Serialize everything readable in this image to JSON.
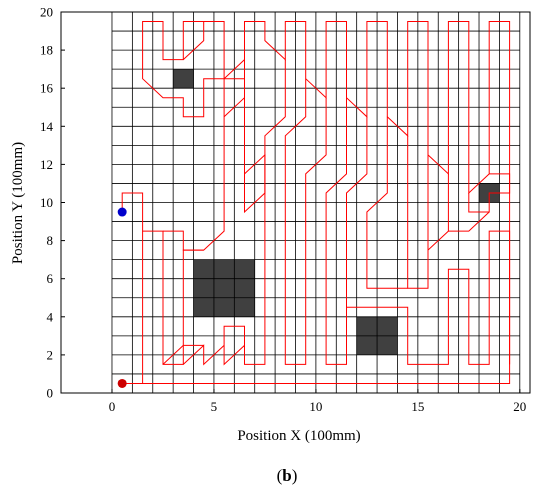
{
  "chart_data": {
    "type": "scatter",
    "xlabel": "Position X (100mm)",
    "ylabel": "Position Y (100mm)",
    "xlim": [
      -2.5,
      20.5
    ],
    "ylim": [
      0,
      20
    ],
    "xticks": [
      0,
      5,
      10,
      15,
      20
    ],
    "yticks": [
      0,
      2,
      4,
      6,
      8,
      10,
      12,
      14,
      16,
      18,
      20
    ],
    "grid": {
      "step": 1,
      "x_from": 0,
      "x_to": 20,
      "y_from": 0,
      "y_to": 20
    },
    "obstacles": [
      {
        "x0": 3,
        "x1": 4,
        "y0": 16,
        "y1": 17
      },
      {
        "x0": 4,
        "x1": 7,
        "y0": 4,
        "y1": 7
      },
      {
        "x0": 12,
        "x1": 14,
        "y0": 2,
        "y1": 4
      },
      {
        "x0": 18,
        "x1": 19,
        "y0": 10,
        "y1": 11
      }
    ],
    "start_point": {
      "x": 0.5,
      "y": 0.5
    },
    "end_point": {
      "x": 0.5,
      "y": 9.5
    },
    "path": [
      [
        0.5,
        0.5
      ],
      [
        19.5,
        0.5
      ],
      [
        19.5,
        19.5
      ],
      [
        18.5,
        19.5
      ],
      [
        18.5,
        11.5
      ],
      [
        17.5,
        10.5
      ],
      [
        17.5,
        19.5
      ],
      [
        16.5,
        19.5
      ],
      [
        16.5,
        11.5
      ],
      [
        15.5,
        12.5
      ],
      [
        15.5,
        19.5
      ],
      [
        14.5,
        19.5
      ],
      [
        14.5,
        13.5
      ],
      [
        13.5,
        14.5
      ],
      [
        13.5,
        19.5
      ],
      [
        12.5,
        19.5
      ],
      [
        12.5,
        14.5
      ],
      [
        11.5,
        15.5
      ],
      [
        11.5,
        19.5
      ],
      [
        10.5,
        19.5
      ],
      [
        10.5,
        15.5
      ],
      [
        9.5,
        16.5
      ],
      [
        9.5,
        19.5
      ],
      [
        8.5,
        19.5
      ],
      [
        8.5,
        17.5
      ],
      [
        7.5,
        18.5
      ],
      [
        7.5,
        19.5
      ],
      [
        6.5,
        19.5
      ],
      [
        6.5,
        17.5
      ],
      [
        5.5,
        16.5
      ],
      [
        5.5,
        19.5
      ],
      [
        4.5,
        19.5
      ],
      [
        4.5,
        18.5
      ],
      [
        3.5,
        17.5
      ],
      [
        4.5,
        18.5
      ],
      [
        4.5,
        19.5
      ],
      [
        3.5,
        19.5
      ],
      [
        3.5,
        17.5
      ],
      [
        2.5,
        17.5
      ],
      [
        2.5,
        19.5
      ],
      [
        1.5,
        19.5
      ],
      [
        1.5,
        16.5
      ],
      [
        2.5,
        15.5
      ],
      [
        3.5,
        15.5
      ],
      [
        3.5,
        14.5
      ],
      [
        4.5,
        14.5
      ],
      [
        4.5,
        16.5
      ],
      [
        5.5,
        16.5
      ],
      [
        5.5,
        8.5
      ],
      [
        4.5,
        7.5
      ],
      [
        3.5,
        7.5
      ],
      [
        3.5,
        1.5
      ],
      [
        2.5,
        1.5
      ],
      [
        2.5,
        8.5
      ],
      [
        1.5,
        8.5
      ],
      [
        1.5,
        10.5
      ],
      [
        0.5,
        10.5
      ],
      [
        0.5,
        9.5
      ]
    ],
    "path_segments": [
      [
        [
          18.5,
          11.5
        ],
        [
          19.5,
          11.5
        ],
        [
          19.5,
          10.5
        ],
        [
          18.5,
          10.5
        ],
        [
          18.5,
          9.5
        ],
        [
          17.5,
          9.5
        ],
        [
          17.5,
          10.5
        ]
      ],
      [
        [
          16.5,
          11.5
        ],
        [
          16.5,
          8.5
        ],
        [
          17.5,
          8.5
        ],
        [
          18.5,
          9.5
        ]
      ],
      [
        [
          15.5,
          12.5
        ],
        [
          15.5,
          7.5
        ],
        [
          16.5,
          8.5
        ]
      ],
      [
        [
          14.5,
          13.5
        ],
        [
          14.5,
          5.5
        ],
        [
          15.5,
          5.5
        ],
        [
          15.5,
          7.5
        ]
      ],
      [
        [
          13.5,
          14.5
        ],
        [
          13.5,
          10.5
        ],
        [
          12.5,
          9.5
        ],
        [
          12.5,
          5.5
        ],
        [
          14.5,
          5.5
        ]
      ],
      [
        [
          12.5,
          14.5
        ],
        [
          12.5,
          11.5
        ],
        [
          11.5,
          10.5
        ],
        [
          11.5,
          5.5
        ],
        [
          11.5,
          4.5
        ],
        [
          14.5,
          4.5
        ],
        [
          14.5,
          1.5
        ],
        [
          16.5,
          1.5
        ],
        [
          16.5,
          6.5
        ],
        [
          17.5,
          6.5
        ],
        [
          17.5,
          1.5
        ],
        [
          18.5,
          1.5
        ],
        [
          18.5,
          8.5
        ],
        [
          19.5,
          8.5
        ],
        [
          19.5,
          1.5
        ]
      ],
      [
        [
          11.5,
          15.5
        ],
        [
          11.5,
          11.5
        ],
        [
          10.5,
          10.5
        ],
        [
          10.5,
          1.5
        ],
        [
          11.5,
          1.5
        ],
        [
          11.5,
          4.5
        ]
      ],
      [
        [
          10.5,
          15.5
        ],
        [
          10.5,
          12.5
        ],
        [
          9.5,
          11.5
        ],
        [
          9.5,
          1.5
        ],
        [
          8.5,
          1.5
        ],
        [
          8.5,
          11.5
        ],
        [
          8.5,
          13.5
        ],
        [
          9.5,
          14.5
        ],
        [
          9.5,
          16.5
        ]
      ],
      [
        [
          8.5,
          17.5
        ],
        [
          8.5,
          14.5
        ],
        [
          7.5,
          13.5
        ],
        [
          7.5,
          1.5
        ],
        [
          6.5,
          1.5
        ],
        [
          6.5,
          3.5
        ],
        [
          5.5,
          3.5
        ],
        [
          5.5,
          2.5
        ],
        [
          4.5,
          1.5
        ],
        [
          4.5,
          2.5
        ],
        [
          3.5,
          1.5
        ]
      ],
      [
        [
          6.5,
          17.5
        ],
        [
          6.5,
          9.5
        ],
        [
          7.5,
          10.5
        ],
        [
          7.5,
          12.5
        ],
        [
          6.5,
          11.5
        ]
      ],
      [
        [
          5.5,
          16.5
        ],
        [
          6.5,
          16.5
        ],
        [
          6.5,
          15.5
        ],
        [
          5.5,
          14.5
        ]
      ],
      [
        [
          6.5,
          3.5
        ],
        [
          6.5,
          2.5
        ],
        [
          5.5,
          1.5
        ],
        [
          5.5,
          2.5
        ]
      ],
      [
        [
          4.5,
          7.5
        ],
        [
          3.5,
          7.5
        ],
        [
          3.5,
          8.5
        ],
        [
          2.5,
          8.5
        ]
      ],
      [
        [
          4.5,
          2.5
        ],
        [
          3.5,
          2.5
        ],
        [
          2.5,
          1.5
        ]
      ],
      [
        [
          1.5,
          8.5
        ],
        [
          1.5,
          0.5
        ]
      ]
    ],
    "path_color": "#ff0000",
    "grid_color": "#000000",
    "obstacle_color": "#404040",
    "start_color": "#cc0000",
    "end_color": "#0000cc"
  },
  "caption": {
    "open": "(",
    "letter": "b",
    "close": ")"
  }
}
